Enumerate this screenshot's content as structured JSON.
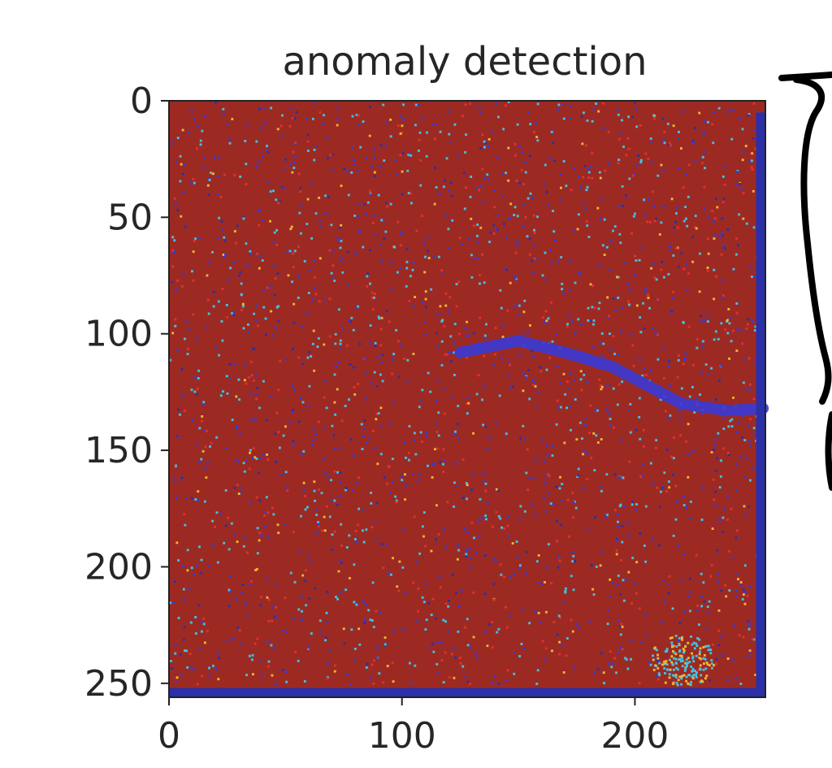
{
  "chart_data": {
    "type": "heatmap",
    "title": "anomaly detection",
    "xlabel": "",
    "ylabel": "",
    "xlim": [
      0,
      256
    ],
    "ylim": [
      256,
      0
    ],
    "x_ticks": [
      0,
      100,
      200
    ],
    "x_tick_labels": [
      "0",
      "100",
      "200"
    ],
    "y_ticks": [
      0,
      50,
      100,
      150,
      200,
      250
    ],
    "y_tick_labels": [
      "0",
      "50",
      "100",
      "150",
      "200",
      "250"
    ],
    "grid": false,
    "colormap": "jet",
    "colors": {
      "background": "#9c2a23",
      "anomaly_dark": "#2b2fa8",
      "anomaly_blue": "#3a3ad6",
      "anomaly_cyan": "#3ec4e6",
      "anomaly_yellow": "#f1b72e",
      "anomaly_red": "#e5302a"
    },
    "features": [
      {
        "kind": "river",
        "points": [
          [
            125,
            108
          ],
          [
            150,
            103
          ],
          [
            170,
            108
          ],
          [
            190,
            114
          ],
          [
            205,
            122
          ],
          [
            220,
            130
          ],
          [
            240,
            133
          ],
          [
            255,
            132
          ]
        ]
      },
      {
        "kind": "bottom-band",
        "points": [
          [
            0,
            252
          ],
          [
            256,
            254
          ]
        ]
      },
      {
        "kind": "right-band",
        "points": [
          [
            252,
            5
          ],
          [
            252,
            256
          ]
        ]
      },
      {
        "kind": "cluster",
        "center": [
          220,
          240
        ],
        "radius": 14,
        "palette": "cyan-yellow"
      }
    ],
    "annotation": {
      "kind": "hand-drawn-brace",
      "side": "right"
    }
  }
}
